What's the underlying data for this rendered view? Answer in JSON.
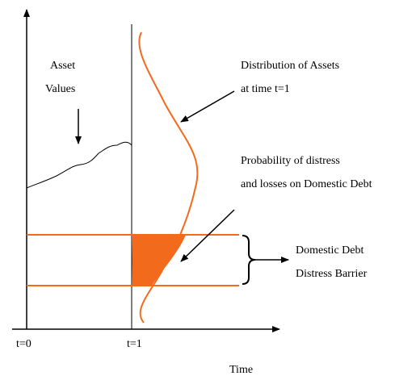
{
  "labels": {
    "asset_values": [
      "Asset",
      "Values"
    ],
    "distribution": [
      "Distribution of Assets",
      "at time t=1"
    ],
    "probability": [
      "Probability of distress",
      "and losses on Domestic Debt"
    ],
    "barrier": [
      "Domestic Debt",
      "Distress Barrier"
    ],
    "t0": "t=0",
    "t1": "t=1",
    "time": "Time"
  }
}
